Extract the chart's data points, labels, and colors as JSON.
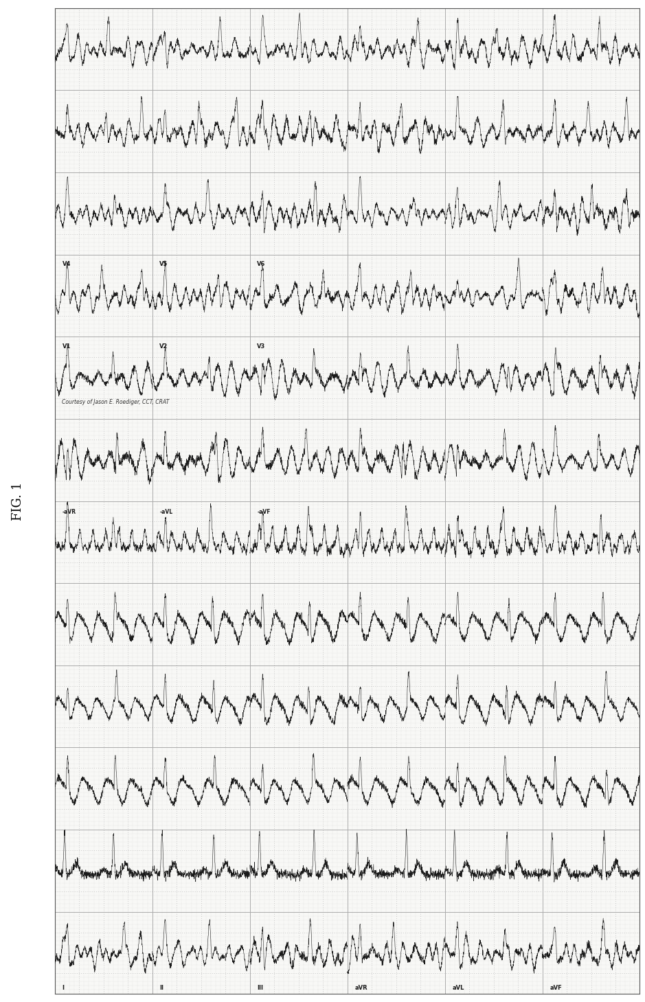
{
  "fig_label": "FIG. 1",
  "background_color": "#ffffff",
  "ecg_paper_color": "#f8f8f6",
  "grid_major_color": "#aaaaaa",
  "grid_minor_color": "#cccccc",
  "grid_dotted_color": "#bbbbbb",
  "ecg_color": "#1a1a1a",
  "border_color": "#555555",
  "fig_width": 9.39,
  "fig_height": 14.59,
  "n_rows": 12,
  "n_major_cols": 24,
  "n_minor_per_major": 5,
  "annotation_text": "Courtesy of Jason E. Roediger, CCT, CRAT",
  "bottom_labels": [
    "I",
    "II",
    "III",
    "aVR",
    "aVL",
    "aVF"
  ],
  "n_col_groups": 6,
  "label_fontsize": 6,
  "annotation_fontsize": 5.5,
  "fig_label_fontsize": 13,
  "ecg_linewidth": 0.4
}
